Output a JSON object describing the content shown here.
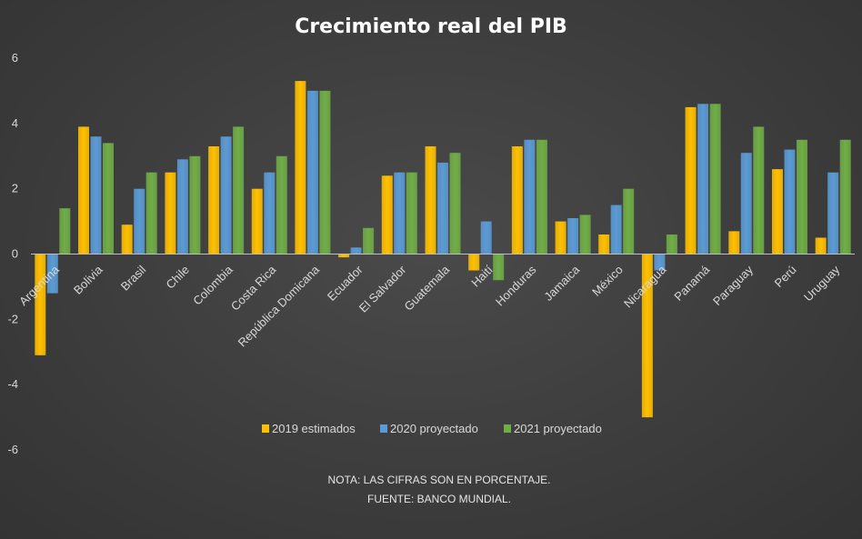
{
  "chart_data": {
    "type": "bar",
    "title": "Crecimiento real del PIB",
    "categories": [
      "Argentina",
      "Bolivia",
      "Brasil",
      "Chile",
      "Colombia",
      "Costa Rica",
      "República Domicana",
      "Ecuador",
      "El Salvador",
      "Guatemala",
      "Haití",
      "Honduras",
      "Jamaica",
      "México",
      "Nicaragua",
      "Panamá",
      "Paraguay",
      "Perú",
      "Uruguay"
    ],
    "series": [
      {
        "name": "2019 estimados",
        "color": "#FFC000",
        "values": [
          -3.1,
          3.9,
          0.9,
          2.5,
          3.3,
          2.0,
          5.3,
          -0.1,
          2.4,
          3.3,
          -0.5,
          3.3,
          1.0,
          0.6,
          -5.0,
          4.5,
          0.7,
          2.6,
          0.5
        ]
      },
      {
        "name": "2020 proyectado",
        "color": "#5B9BD5",
        "values": [
          -1.2,
          3.6,
          2.0,
          2.9,
          3.6,
          2.5,
          5.0,
          0.2,
          2.5,
          2.8,
          1.0,
          3.5,
          1.1,
          1.5,
          -0.5,
          4.6,
          3.1,
          3.2,
          2.5
        ]
      },
      {
        "name": "2021 proyectado",
        "color": "#70AD47",
        "values": [
          1.4,
          3.4,
          2.5,
          3.0,
          3.9,
          3.0,
          5.0,
          0.8,
          2.5,
          3.1,
          -0.8,
          3.5,
          1.2,
          2.0,
          0.6,
          4.6,
          3.9,
          3.5,
          3.5
        ]
      }
    ],
    "ylim": [
      -6,
      6
    ],
    "yticks": [
      6,
      4,
      2,
      0,
      -2,
      -4,
      -6
    ],
    "grid": false,
    "legend_position": "bottom",
    "notes": [
      "NOTA: LAS CIFRAS SON EN PORCENTAJE.",
      "FUENTE: BANCO MUNDIAL."
    ]
  }
}
